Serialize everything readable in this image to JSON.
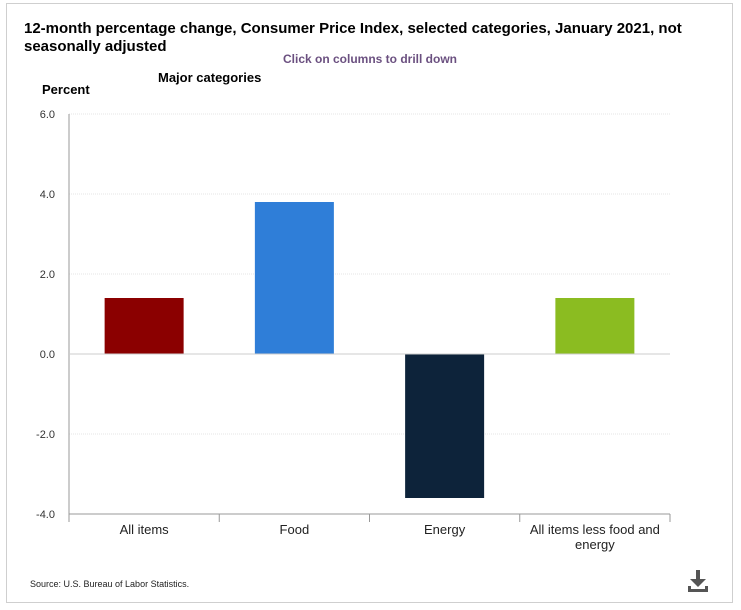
{
  "title": "12-month percentage change, Consumer Price Index, selected categories, January 2021, not seasonally adjusted",
  "drill_hint": "Click on columns to drill down",
  "source": "Source: U.S. Bureau of Labor Statistics.",
  "download_icon": "download-icon",
  "chart_data": {
    "type": "bar",
    "title": "12-month percentage change, Consumer Price Index, selected categories, January 2021, not seasonally adjusted",
    "subtitle": "Major categories",
    "ylabel": "Percent",
    "xlabel": "",
    "categories": [
      "All items",
      "Food",
      "Energy",
      "All items less food and energy"
    ],
    "category_lines": [
      [
        "All items"
      ],
      [
        "Food"
      ],
      [
        "Energy"
      ],
      [
        "All items less food and",
        "energy"
      ]
    ],
    "values": [
      1.4,
      3.8,
      -3.6,
      1.4
    ],
    "colors": [
      "#8b0000",
      "#2f7ed8",
      "#0d233a",
      "#8bbc21"
    ],
    "ylim": [
      -4.0,
      6.0
    ],
    "yticks": [
      -4.0,
      -2.0,
      0.0,
      2.0,
      4.0,
      6.0
    ],
    "ytick_labels": [
      "-4.0",
      "-2.0",
      "0.0",
      "2.0",
      "4.0",
      "6.0"
    ],
    "grid": true,
    "legend": "none"
  }
}
